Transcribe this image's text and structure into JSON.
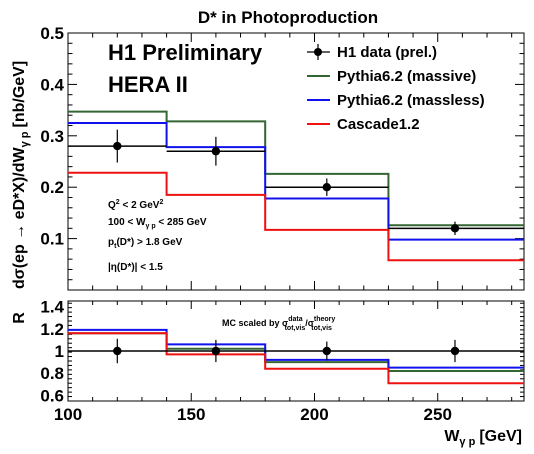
{
  "title": "D* in Photoproduction",
  "labels": {
    "experiment": "H1 Preliminary",
    "run": "HERA II",
    "top_ylabel": "dσ(ep → eD*X)/dW",
    "top_ylabel_sub": "γ p",
    "top_ylabel_unit": "[nb/GeV]",
    "bottom_ylabel": "R",
    "xlabel": "W",
    "xlabel_sub": "γ p",
    "xlabel_unit": "[GeV]",
    "note_prefix": "MC scaled by σ",
    "note_num_sup": "data",
    "note_num_sub": "tot,vis",
    "note_mid": "/σ",
    "note_den_sup": "theory",
    "note_den_sub": "tot,vis"
  },
  "cuts": [
    {
      "text": "Q",
      "sup": "2",
      "rest": " < 2 GeV",
      "sup2": "2"
    },
    {
      "text": "100 < W",
      "sub": "γ p",
      "rest": " < 285 GeV"
    },
    {
      "text": "p",
      "sub": "t",
      "rest": "(D*) > 1.8 GeV"
    },
    {
      "text": "|η(D*)| < 1.5"
    }
  ],
  "chart_data": [
    {
      "type": "line",
      "panel": "top",
      "xlim": [
        100,
        285
      ],
      "ylim": [
        0,
        0.5
      ],
      "bin_edges": [
        100,
        140,
        180,
        230,
        285
      ],
      "xticks": [
        100,
        150,
        200,
        250
      ],
      "yticks": [
        0.1,
        0.2,
        0.3,
        0.4,
        0.5
      ],
      "ytick_labels": [
        "0.1",
        "0.2",
        "0.3",
        "0.4",
        "0.5"
      ],
      "data": {
        "name": "H1 data (prel.)",
        "x": [
          120,
          160,
          205,
          257
        ],
        "y": [
          0.28,
          0.27,
          0.2,
          0.12
        ],
        "yerr": [
          0.032,
          0.028,
          0.017,
          0.013
        ],
        "bin_values": [
          0.28,
          0.27,
          0.2,
          0.12
        ]
      },
      "series": [
        {
          "name": "Pythia6.2 (massive)",
          "color": "#336633",
          "values": [
            0.347,
            0.328,
            0.226,
            0.126
          ]
        },
        {
          "name": "Pythia6.2 (massless)",
          "color": "#1111ee",
          "values": [
            0.325,
            0.278,
            0.178,
            0.098
          ]
        },
        {
          "name": "Cascade1.2",
          "color": "#ee1111",
          "values": [
            0.228,
            0.185,
            0.117,
            0.058
          ]
        }
      ]
    },
    {
      "type": "line",
      "panel": "bottom",
      "xlim": [
        100,
        285
      ],
      "ylim": [
        0.55,
        1.45
      ],
      "bin_edges": [
        100,
        140,
        180,
        230,
        285
      ],
      "xticks": [
        100,
        150,
        200,
        250
      ],
      "yticks": [
        0.6,
        0.8,
        1,
        1.2,
        1.4
      ],
      "ytick_labels": [
        "0.6",
        "0.8",
        "1",
        "1.2",
        "1.4"
      ],
      "data": {
        "x": [
          120,
          160,
          205,
          257
        ],
        "y": [
          1.0,
          1.0,
          1.0,
          1.0
        ],
        "yerr": [
          0.11,
          0.1,
          0.085,
          0.1
        ],
        "bin_values": [
          1.0,
          1.0,
          1.0,
          1.0
        ]
      },
      "series": [
        {
          "name": "Pythia6.2 (massive)",
          "color": "#336633",
          "values": [
            1.16,
            1.02,
            0.9,
            0.82
          ]
        },
        {
          "name": "Pythia6.2 (massless)",
          "color": "#1111ee",
          "values": [
            1.19,
            1.06,
            0.92,
            0.85
          ]
        },
        {
          "name": "Cascade1.2",
          "color": "#ee1111",
          "values": [
            1.16,
            0.97,
            0.84,
            0.71
          ]
        }
      ]
    }
  ]
}
